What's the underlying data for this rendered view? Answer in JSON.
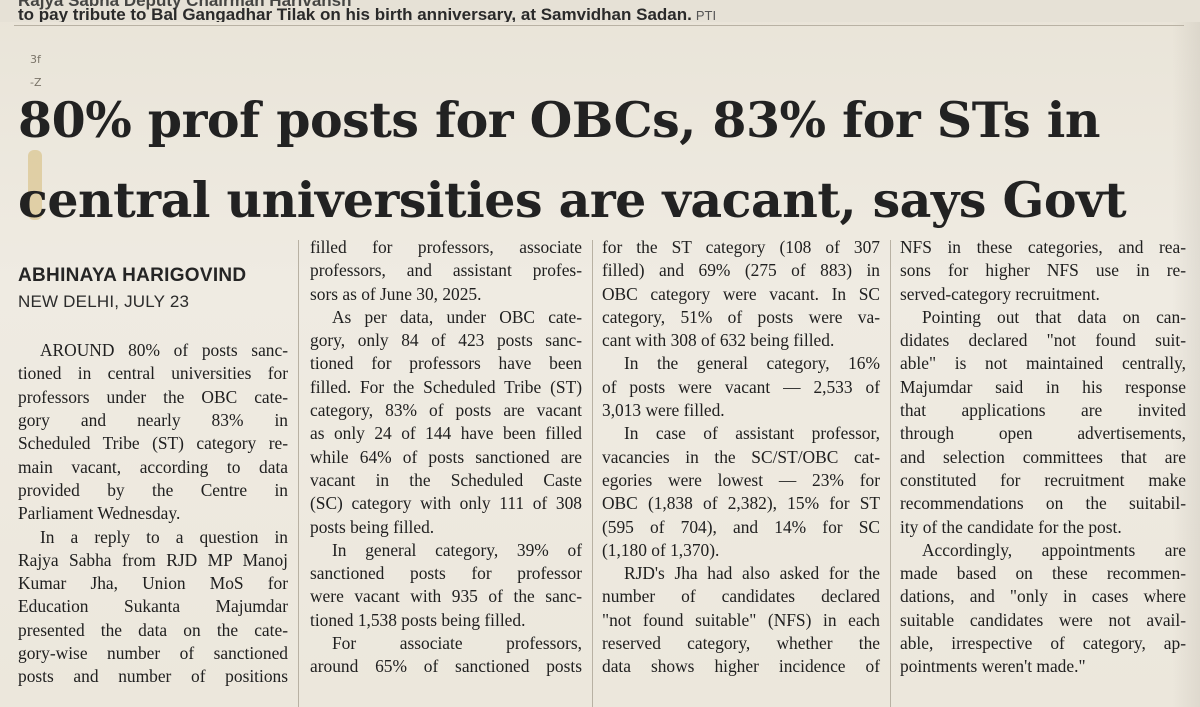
{
  "caption": {
    "line1": "Rajya Sabha Deputy Chairman Harivansh",
    "line2": "to pay tribute to Bal Gangadhar Tilak on his birth anniversary, at Samvidhan Sadan.",
    "credit": "PTI"
  },
  "margin_marks": [
    "3f",
    "-Z"
  ],
  "headline": {
    "line1": "80% prof posts for OBCs, 83% for STs in",
    "line2": "central universities are vacant, says Govt"
  },
  "byline": {
    "author": "ABHINAYA HARIGOVIND",
    "dateline": "NEW DELHI, JULY 23"
  },
  "columns": [
    {
      "start_line": 4,
      "lines": [
        "AROUND 80% of posts sanc-",
        "tioned in central universities for",
        "professors under the OBC cate-",
        "gory and nearly 83% in",
        "Scheduled Tribe (ST) category re-",
        "main vacant, according to data",
        "provided by the Centre in",
        "Parliament Wednesday.",
        "In a reply to a question in",
        "Rajya Sabha from RJD MP Manoj",
        "Kumar Jha, Union MoS for",
        "Education Sukanta Majumdar",
        "presented the data on the cate-",
        "gory-wise number of sanctioned",
        "posts and number of positions"
      ],
      "para_starts": [
        0,
        8
      ],
      "para_ends": [
        7
      ]
    },
    {
      "start_line": 0,
      "lines": [
        "filled for professors, associate",
        "professors, and assistant profes-",
        "sors as of June 30, 2025.",
        "As per data, under OBC cate-",
        "gory, only 84 of 423 posts sanc-",
        "tioned for professors have been",
        "filled. For the Scheduled Tribe (ST)",
        "category, 83% of posts are vacant",
        "as only 24 of 144 have been filled",
        "while 64% of posts sanctioned are",
        "vacant in the Scheduled Caste",
        "(SC) category with only 111 of 308",
        "posts being filled.",
        "In general category, 39% of",
        "sanctioned posts for professor",
        "were vacant with 935 of the sanc-",
        "tioned 1,538 posts being filled.",
        "For associate professors,",
        "around 65% of sanctioned posts"
      ],
      "para_starts": [
        3,
        13,
        17
      ],
      "para_ends": [
        2,
        12,
        16
      ]
    },
    {
      "start_line": 0,
      "lines": [
        "for the ST category (108 of 307",
        "filled) and 69% (275 of 883) in",
        "OBC category were vacant. In SC",
        "category, 51% of posts were va-",
        "cant with 308 of 632 being filled.",
        "In the general category, 16%",
        "of posts were vacant — 2,533 of",
        "3,013 were filled.",
        "In case of assistant professor,",
        "vacancies in the SC/ST/OBC cat-",
        "egories were lowest — 23% for",
        "OBC (1,838 of 2,382), 15% for ST",
        "(595 of 704), and 14% for SC",
        "(1,180 of 1,370).",
        "RJD's Jha had also asked for the",
        "number of candidates declared",
        "\"not found suitable\" (NFS) in each",
        "reserved category, whether the",
        "data shows higher incidence of"
      ],
      "para_starts": [
        5,
        8,
        14
      ],
      "para_ends": [
        4,
        7,
        13
      ]
    },
    {
      "start_line": 0,
      "lines": [
        "NFS in these categories, and rea-",
        "sons for higher NFS use in re-",
        "served-category recruitment.",
        "Pointing out that data on can-",
        "didates declared \"not found suit-",
        "able\" is not maintained centrally,",
        "Majumdar said in his response",
        "that applications are invited",
        "through open advertisements,",
        "and selection committees that are",
        "constituted for recruitment make",
        "recommendations on the suitabil-",
        "ity of the candidate for the post.",
        "Accordingly, appointments are",
        "made based on these recommen-",
        "dations, and \"only in cases where",
        "suitable candidates were not avail-",
        "able, irrespective of category, ap-",
        "pointments weren't made.\""
      ],
      "para_starts": [
        3,
        13
      ],
      "para_ends": [
        2,
        12,
        18
      ]
    }
  ]
}
